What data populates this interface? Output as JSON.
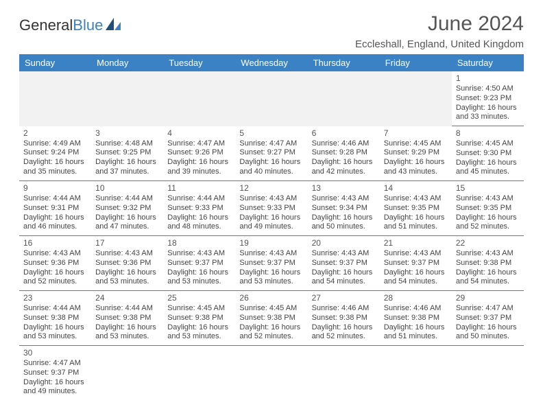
{
  "logo": {
    "general": "General",
    "blue": "Blue"
  },
  "title": "June 2024",
  "subtitle": "Eccleshall, England, United Kingdom",
  "colors": {
    "header_bg": "#3b82c4",
    "header_fg": "#ffffff",
    "border": "#3b82c4",
    "alt_bg": "#f2f2f2"
  },
  "day_headers": [
    "Sunday",
    "Monday",
    "Tuesday",
    "Wednesday",
    "Thursday",
    "Friday",
    "Saturday"
  ],
  "weeks": [
    [
      null,
      null,
      null,
      null,
      null,
      null,
      {
        "n": "1",
        "sr": "Sunrise: 4:50 AM",
        "ss": "Sunset: 9:23 PM",
        "dl": "Daylight: 16 hours and 33 minutes."
      }
    ],
    [
      {
        "n": "2",
        "sr": "Sunrise: 4:49 AM",
        "ss": "Sunset: 9:24 PM",
        "dl": "Daylight: 16 hours and 35 minutes."
      },
      {
        "n": "3",
        "sr": "Sunrise: 4:48 AM",
        "ss": "Sunset: 9:25 PM",
        "dl": "Daylight: 16 hours and 37 minutes."
      },
      {
        "n": "4",
        "sr": "Sunrise: 4:47 AM",
        "ss": "Sunset: 9:26 PM",
        "dl": "Daylight: 16 hours and 39 minutes."
      },
      {
        "n": "5",
        "sr": "Sunrise: 4:47 AM",
        "ss": "Sunset: 9:27 PM",
        "dl": "Daylight: 16 hours and 40 minutes."
      },
      {
        "n": "6",
        "sr": "Sunrise: 4:46 AM",
        "ss": "Sunset: 9:28 PM",
        "dl": "Daylight: 16 hours and 42 minutes."
      },
      {
        "n": "7",
        "sr": "Sunrise: 4:45 AM",
        "ss": "Sunset: 9:29 PM",
        "dl": "Daylight: 16 hours and 43 minutes."
      },
      {
        "n": "8",
        "sr": "Sunrise: 4:45 AM",
        "ss": "Sunset: 9:30 PM",
        "dl": "Daylight: 16 hours and 45 minutes."
      }
    ],
    [
      {
        "n": "9",
        "sr": "Sunrise: 4:44 AM",
        "ss": "Sunset: 9:31 PM",
        "dl": "Daylight: 16 hours and 46 minutes."
      },
      {
        "n": "10",
        "sr": "Sunrise: 4:44 AM",
        "ss": "Sunset: 9:32 PM",
        "dl": "Daylight: 16 hours and 47 minutes."
      },
      {
        "n": "11",
        "sr": "Sunrise: 4:44 AM",
        "ss": "Sunset: 9:33 PM",
        "dl": "Daylight: 16 hours and 48 minutes."
      },
      {
        "n": "12",
        "sr": "Sunrise: 4:43 AM",
        "ss": "Sunset: 9:33 PM",
        "dl": "Daylight: 16 hours and 49 minutes."
      },
      {
        "n": "13",
        "sr": "Sunrise: 4:43 AM",
        "ss": "Sunset: 9:34 PM",
        "dl": "Daylight: 16 hours and 50 minutes."
      },
      {
        "n": "14",
        "sr": "Sunrise: 4:43 AM",
        "ss": "Sunset: 9:35 PM",
        "dl": "Daylight: 16 hours and 51 minutes."
      },
      {
        "n": "15",
        "sr": "Sunrise: 4:43 AM",
        "ss": "Sunset: 9:35 PM",
        "dl": "Daylight: 16 hours and 52 minutes."
      }
    ],
    [
      {
        "n": "16",
        "sr": "Sunrise: 4:43 AM",
        "ss": "Sunset: 9:36 PM",
        "dl": "Daylight: 16 hours and 52 minutes."
      },
      {
        "n": "17",
        "sr": "Sunrise: 4:43 AM",
        "ss": "Sunset: 9:36 PM",
        "dl": "Daylight: 16 hours and 53 minutes."
      },
      {
        "n": "18",
        "sr": "Sunrise: 4:43 AM",
        "ss": "Sunset: 9:37 PM",
        "dl": "Daylight: 16 hours and 53 minutes."
      },
      {
        "n": "19",
        "sr": "Sunrise: 4:43 AM",
        "ss": "Sunset: 9:37 PM",
        "dl": "Daylight: 16 hours and 53 minutes."
      },
      {
        "n": "20",
        "sr": "Sunrise: 4:43 AM",
        "ss": "Sunset: 9:37 PM",
        "dl": "Daylight: 16 hours and 54 minutes."
      },
      {
        "n": "21",
        "sr": "Sunrise: 4:43 AM",
        "ss": "Sunset: 9:37 PM",
        "dl": "Daylight: 16 hours and 54 minutes."
      },
      {
        "n": "22",
        "sr": "Sunrise: 4:43 AM",
        "ss": "Sunset: 9:38 PM",
        "dl": "Daylight: 16 hours and 54 minutes."
      }
    ],
    [
      {
        "n": "23",
        "sr": "Sunrise: 4:44 AM",
        "ss": "Sunset: 9:38 PM",
        "dl": "Daylight: 16 hours and 53 minutes."
      },
      {
        "n": "24",
        "sr": "Sunrise: 4:44 AM",
        "ss": "Sunset: 9:38 PM",
        "dl": "Daylight: 16 hours and 53 minutes."
      },
      {
        "n": "25",
        "sr": "Sunrise: 4:45 AM",
        "ss": "Sunset: 9:38 PM",
        "dl": "Daylight: 16 hours and 53 minutes."
      },
      {
        "n": "26",
        "sr": "Sunrise: 4:45 AM",
        "ss": "Sunset: 9:38 PM",
        "dl": "Daylight: 16 hours and 52 minutes."
      },
      {
        "n": "27",
        "sr": "Sunrise: 4:46 AM",
        "ss": "Sunset: 9:38 PM",
        "dl": "Daylight: 16 hours and 52 minutes."
      },
      {
        "n": "28",
        "sr": "Sunrise: 4:46 AM",
        "ss": "Sunset: 9:38 PM",
        "dl": "Daylight: 16 hours and 51 minutes."
      },
      {
        "n": "29",
        "sr": "Sunrise: 4:47 AM",
        "ss": "Sunset: 9:37 PM",
        "dl": "Daylight: 16 hours and 50 minutes."
      }
    ],
    [
      {
        "n": "30",
        "sr": "Sunrise: 4:47 AM",
        "ss": "Sunset: 9:37 PM",
        "dl": "Daylight: 16 hours and 49 minutes."
      },
      null,
      null,
      null,
      null,
      null,
      null
    ]
  ]
}
